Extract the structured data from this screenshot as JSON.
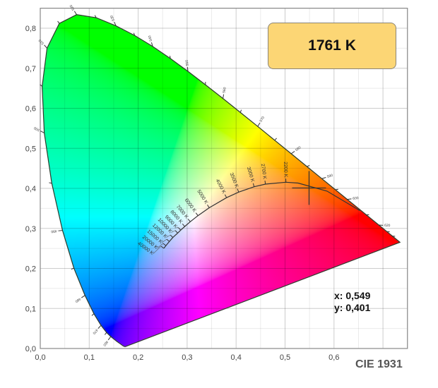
{
  "chart_data": {
    "type": "scatter",
    "title": "CIE 1931",
    "xlim": [
      0,
      0.75
    ],
    "ylim": [
      0,
      0.85
    ],
    "x_ticks": [
      "0,0",
      "0,1",
      "0,2",
      "0,3",
      "0,4",
      "0,5",
      "0,6"
    ],
    "y_ticks": [
      "0,0",
      "0,1",
      "0,2",
      "0,3",
      "0,4",
      "0,5",
      "0,6",
      "0,7",
      "0,8"
    ],
    "grid": true,
    "spectral_locus": [
      [
        380,
        0.1741,
        0.005
      ],
      [
        400,
        0.1733,
        0.0048
      ],
      [
        420,
        0.1714,
        0.0051
      ],
      [
        430,
        0.1689,
        0.0069
      ],
      [
        440,
        0.1644,
        0.0109
      ],
      [
        450,
        0.1566,
        0.0177
      ],
      [
        460,
        0.144,
        0.0297
      ],
      [
        465,
        0.1355,
        0.0399
      ],
      [
        470,
        0.1241,
        0.0578
      ],
      [
        475,
        0.1096,
        0.0868
      ],
      [
        480,
        0.0913,
        0.1327
      ],
      [
        485,
        0.0687,
        0.2007
      ],
      [
        490,
        0.0454,
        0.295
      ],
      [
        495,
        0.0235,
        0.4127
      ],
      [
        500,
        0.0082,
        0.5384
      ],
      [
        505,
        0.0039,
        0.6548
      ],
      [
        510,
        0.0139,
        0.7502
      ],
      [
        515,
        0.0389,
        0.812
      ],
      [
        520,
        0.0743,
        0.8338
      ],
      [
        525,
        0.1142,
        0.8262
      ],
      [
        530,
        0.1547,
        0.8059
      ],
      [
        535,
        0.1929,
        0.7816
      ],
      [
        540,
        0.2296,
        0.7543
      ],
      [
        545,
        0.2658,
        0.7243
      ],
      [
        550,
        0.3016,
        0.6923
      ],
      [
        555,
        0.3373,
        0.6589
      ],
      [
        560,
        0.3731,
        0.6245
      ],
      [
        565,
        0.4087,
        0.5896
      ],
      [
        570,
        0.4441,
        0.5547
      ],
      [
        575,
        0.4788,
        0.5202
      ],
      [
        580,
        0.5125,
        0.4866
      ],
      [
        585,
        0.5448,
        0.4544
      ],
      [
        590,
        0.5752,
        0.4242
      ],
      [
        595,
        0.6029,
        0.3965
      ],
      [
        600,
        0.627,
        0.3725
      ],
      [
        610,
        0.6658,
        0.334
      ],
      [
        620,
        0.6915,
        0.3083
      ],
      [
        630,
        0.7079,
        0.292
      ],
      [
        640,
        0.719,
        0.2809
      ],
      [
        650,
        0.726,
        0.274
      ],
      [
        700,
        0.7347,
        0.2653
      ]
    ],
    "wavelength_labels": [
      "460",
      "470",
      "480",
      "490",
      "500",
      "510",
      "520",
      "530",
      "540",
      "550",
      "560",
      "570",
      "580",
      "590",
      "600",
      "620"
    ],
    "planckian_locus": [
      {
        "label": "40000 K",
        "x": 0.2524,
        "y": 0.2502
      },
      {
        "label": "20000 K",
        "x": 0.2565,
        "y": 0.257
      },
      {
        "label": "15000 K",
        "x": 0.2637,
        "y": 0.2671
      },
      {
        "label": "12000 K",
        "x": 0.2709,
        "y": 0.2773
      },
      {
        "label": "10000 K",
        "x": 0.2807,
        "y": 0.2883
      },
      {
        "label": "9000 K",
        "x": 0.2869,
        "y": 0.2956
      },
      {
        "label": "8000 K",
        "x": 0.2952,
        "y": 0.3048
      },
      {
        "label": "7000 K",
        "x": 0.3064,
        "y": 0.3166
      },
      {
        "label": "6000 K",
        "x": 0.3221,
        "y": 0.3318
      },
      {
        "label": "5000 K",
        "x": 0.3451,
        "y": 0.3516
      },
      {
        "label": "4000 K",
        "x": 0.3805,
        "y": 0.3768
      },
      {
        "label": "3500 K",
        "x": 0.4053,
        "y": 0.3907
      },
      {
        "label": "3000 K",
        "x": 0.4369,
        "y": 0.4041
      },
      {
        "label": "2700 K",
        "x": 0.4599,
        "y": 0.4106
      },
      {
        "label": "2200 K",
        "x": 0.5018,
        "y": 0.4153
      },
      {
        "label": "",
        "x": 0.5267,
        "y": 0.4133
      },
      {
        "label": "",
        "x": 0.5857,
        "y": 0.3931
      },
      {
        "label": "",
        "x": 0.6528,
        "y": 0.3444
      }
    ],
    "measured_point": {
      "x": 0.549,
      "y": 0.401
    }
  },
  "readout": {
    "cct": "1761 K",
    "x": "x: 0,549",
    "y": "y: 0,401"
  },
  "colors": {
    "cct_box": "#fcd675",
    "title": "#555555"
  }
}
